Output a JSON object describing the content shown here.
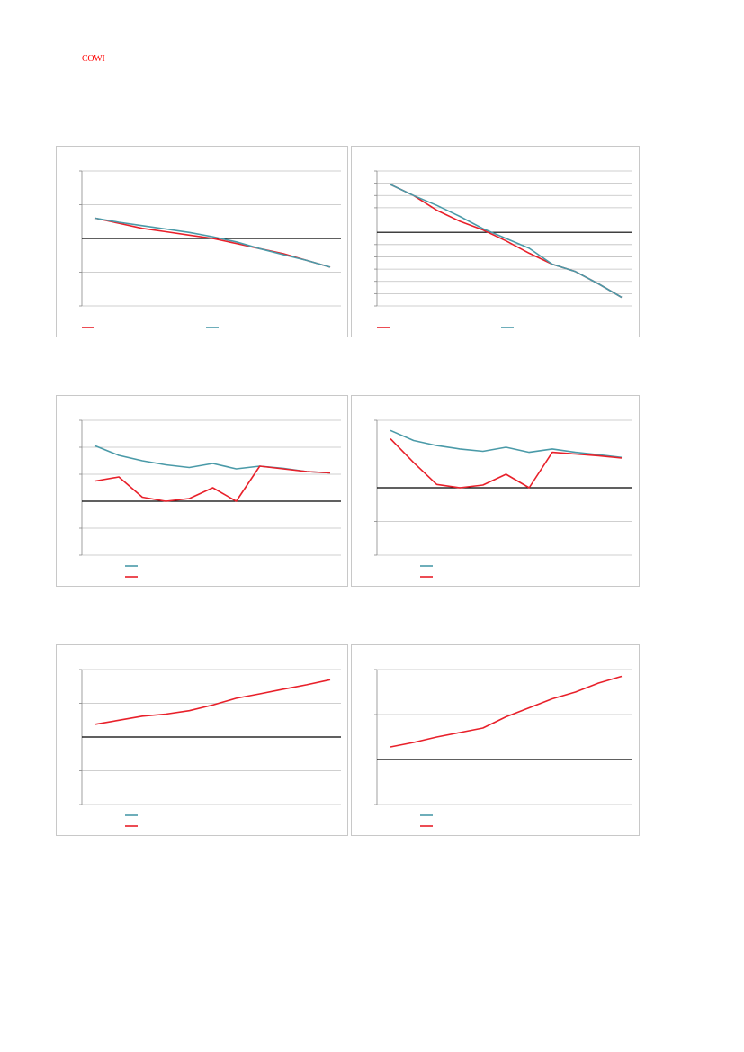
{
  "header": {
    "logo_text": "COWI",
    "logo_color": "#ff0000"
  },
  "colors": {
    "red": "#e8202a",
    "teal": "#4a9aa8",
    "axis": "#000000",
    "grid": "#bfbfbf"
  },
  "chart_data": [
    {
      "type": "line",
      "ylim": [
        -2,
        2
      ],
      "grid_count": 4,
      "legend_layout": "row",
      "series": [
        {
          "color": "#e8202a",
          "values": [
            0.6,
            0.45,
            0.3,
            0.2,
            0.1,
            0.0,
            -0.15,
            -0.3,
            -0.45,
            -0.65,
            -0.85
          ]
        },
        {
          "color": "#4a9aa8",
          "values": [
            0.6,
            0.48,
            0.38,
            0.28,
            0.18,
            0.05,
            -0.1,
            -0.3,
            -0.48,
            -0.65,
            -0.85
          ]
        }
      ]
    },
    {
      "type": "line",
      "ylim": [
        -6,
        5
      ],
      "grid_count": 11,
      "legend_layout": "row",
      "series": [
        {
          "color": "#e8202a",
          "values": [
            3.9,
            3.0,
            1.8,
            0.9,
            0.2,
            -0.7,
            -1.7,
            -2.6,
            -3.2,
            -4.2,
            -5.3
          ]
        },
        {
          "color": "#4a9aa8",
          "values": [
            3.9,
            3.0,
            2.2,
            1.3,
            0.3,
            -0.5,
            -1.3,
            -2.6,
            -3.2,
            -4.2,
            -5.3
          ]
        }
      ]
    },
    {
      "type": "line",
      "ylim": [
        -2,
        3
      ],
      "grid_count": 5,
      "legend_layout": "column",
      "series": [
        {
          "color": "#4a9aa8",
          "values": [
            2.05,
            1.7,
            1.5,
            1.35,
            1.25,
            1.4,
            1.2,
            1.3,
            1.22,
            1.1,
            1.05
          ]
        },
        {
          "color": "#e8202a",
          "values": [
            0.75,
            0.9,
            0.15,
            0.0,
            0.1,
            0.5,
            0.0,
            1.3,
            1.2,
            1.1,
            1.05
          ]
        }
      ]
    },
    {
      "type": "line",
      "ylim": [
        -2,
        2
      ],
      "grid_count": 4,
      "legend_layout": "column",
      "series": [
        {
          "color": "#4a9aa8",
          "values": [
            1.7,
            1.4,
            1.25,
            1.15,
            1.08,
            1.2,
            1.05,
            1.15,
            1.05,
            0.98,
            0.9
          ]
        },
        {
          "color": "#e8202a",
          "values": [
            1.45,
            0.75,
            0.1,
            0.0,
            0.08,
            0.4,
            0.0,
            1.05,
            1.0,
            0.95,
            0.88
          ]
        }
      ]
    },
    {
      "type": "line",
      "ylim": [
        -2,
        2
      ],
      "grid_count": 4,
      "legend_layout": "column",
      "series": [
        {
          "color": "#4a9aa8",
          "values": []
        },
        {
          "color": "#e8202a",
          "values": [
            0.38,
            0.5,
            0.62,
            0.68,
            0.78,
            0.95,
            1.15,
            1.28,
            1.42,
            1.55,
            1.7
          ]
        }
      ]
    },
    {
      "type": "line",
      "ylim": [
        -1,
        2
      ],
      "grid_count": 3,
      "legend_layout": "column",
      "series": [
        {
          "color": "#4a9aa8",
          "values": []
        },
        {
          "color": "#e8202a",
          "values": [
            0.28,
            0.38,
            0.5,
            0.6,
            0.7,
            0.95,
            1.15,
            1.35,
            1.5,
            1.7,
            1.85
          ]
        }
      ]
    }
  ]
}
